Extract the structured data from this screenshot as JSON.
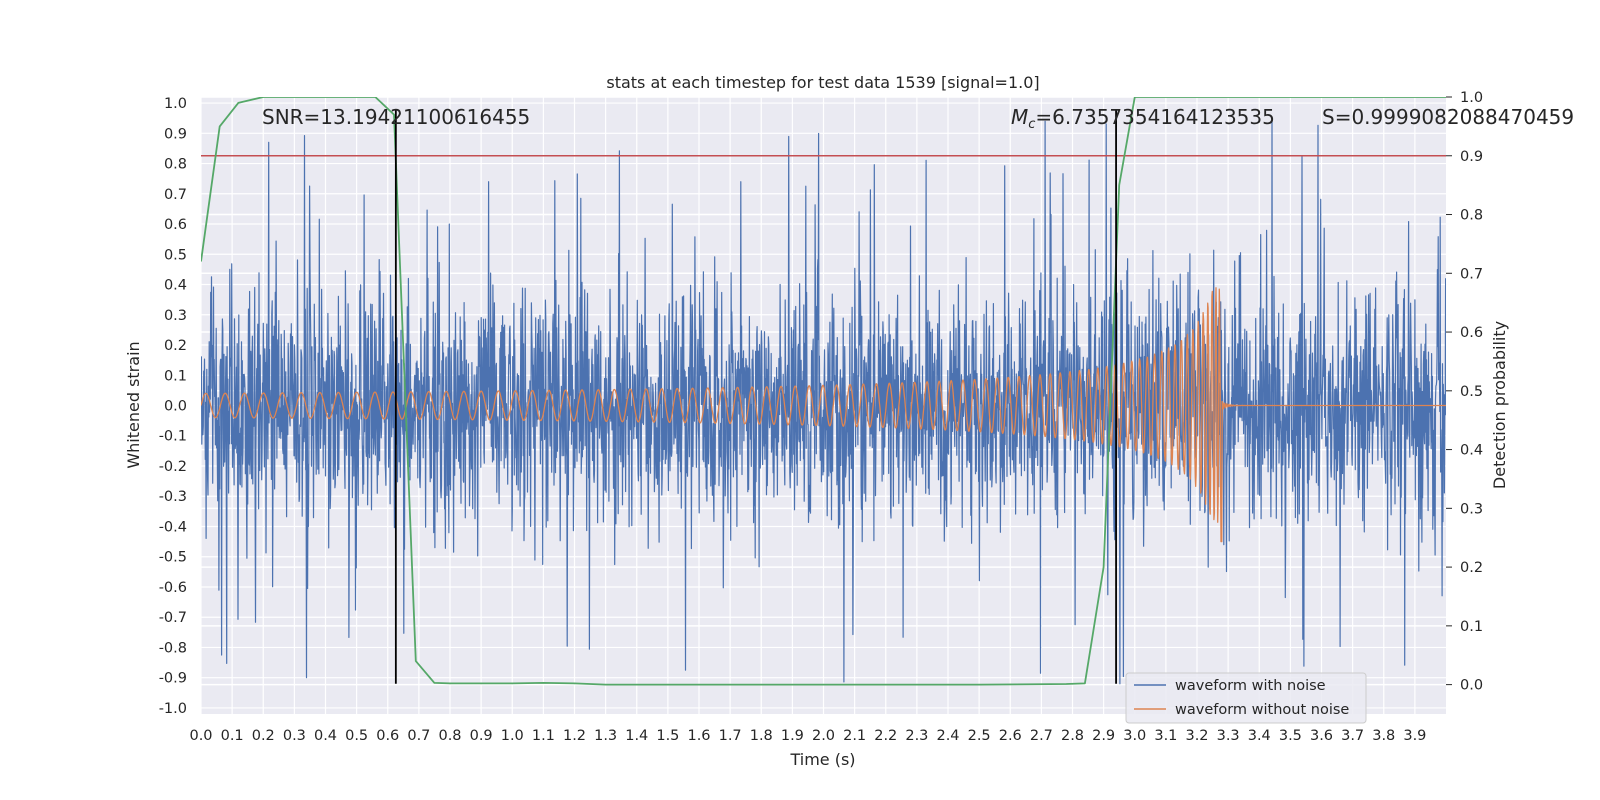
{
  "chart_data": {
    "type": "line",
    "title": "stats at each timestep for test data 1539 [signal=1.0]",
    "xlabel": "Time (s)",
    "ylabel": "Whitened strain",
    "y2label": "Detection probability",
    "xlim": [
      0.0,
      4.0
    ],
    "ylim": [
      -1.02,
      1.02
    ],
    "y2lim": [
      -0.05,
      1.0
    ],
    "xticks": [
      "0.0",
      "0.1",
      "0.2",
      "0.3",
      "0.4",
      "0.5",
      "0.6",
      "0.7",
      "0.8",
      "0.9",
      "1.0",
      "1.1",
      "1.2",
      "1.3",
      "1.4",
      "1.5",
      "1.6",
      "1.7",
      "1.8",
      "1.9",
      "2.0",
      "2.1",
      "2.2",
      "2.3",
      "2.4",
      "2.5",
      "2.6",
      "2.7",
      "2.8",
      "2.9",
      "3.0",
      "3.1",
      "3.2",
      "3.3",
      "3.4",
      "3.5",
      "3.6",
      "3.7",
      "3.8",
      "3.9"
    ],
    "yticks": [
      "1.0",
      "0.9",
      "0.8",
      "0.7",
      "0.6",
      "0.5",
      "0.4",
      "0.3",
      "0.2",
      "0.1",
      "0.0",
      "-0.1",
      "-0.2",
      "-0.3",
      "-0.4",
      "-0.5",
      "-0.6",
      "-0.7",
      "-0.8",
      "-0.9",
      "-1.0"
    ],
    "y2ticks": [
      "1.0",
      "0.9",
      "0.8",
      "0.7",
      "0.6",
      "0.5",
      "0.4",
      "0.3",
      "0.2",
      "0.1",
      "0.0"
    ],
    "series": [
      {
        "name": "waveform with noise",
        "color": "#4c72b0",
        "kind": "noise",
        "sample_rate": 2048,
        "approx_std": 0.19,
        "approx_range": [
          -0.92,
          1.0
        ]
      },
      {
        "name": "waveform without noise",
        "color": "#dd8452",
        "kind": "chirp",
        "start_freq_hz": 16,
        "start_amplitude": 0.04,
        "peak_time_s": 3.28,
        "peak_amplitude": 0.39,
        "min_at_peak": -0.45
      },
      {
        "name": "Detection probability",
        "color": "#55a868",
        "axis": "right",
        "x": [
          0.0,
          0.06,
          0.12,
          0.2,
          0.3,
          0.4,
          0.5,
          0.56,
          0.62,
          0.69,
          0.75,
          0.8,
          1.0,
          1.1,
          1.2,
          1.3,
          1.5,
          2.0,
          2.5,
          2.78,
          2.84,
          2.9,
          2.95,
          3.0,
          3.2,
          3.5,
          3.9,
          4.0
        ],
        "y": [
          0.72,
          0.95,
          0.99,
          1.0,
          1.0,
          1.0,
          1.0,
          1.0,
          0.97,
          0.04,
          0.003,
          0.002,
          0.002,
          0.003,
          0.002,
          0.0,
          0.0,
          0.0,
          0.0,
          0.001,
          0.002,
          0.2,
          0.85,
          1.0,
          1.0,
          1.0,
          1.0,
          1.0
        ]
      }
    ],
    "threshold": {
      "value": 0.9,
      "axis": "right",
      "color": "#c44e52"
    },
    "vlines": [
      0.626,
      2.94
    ],
    "vline_ylim": [
      -0.92,
      0.98
    ],
    "annotations": [
      {
        "id": "snr",
        "text": "SNR=13.19421100616455"
      },
      {
        "id": "mc_pre",
        "text": "M"
      },
      {
        "id": "mc_sub",
        "text": "c"
      },
      {
        "id": "mc_val",
        "text": "=6.7357354164123535"
      },
      {
        "id": "s",
        "text": "S=0.9999082088470459"
      }
    ],
    "legend": {
      "placement": "bottom-right",
      "entries": [
        "waveform with noise",
        "waveform without noise"
      ]
    },
    "grid": true
  }
}
